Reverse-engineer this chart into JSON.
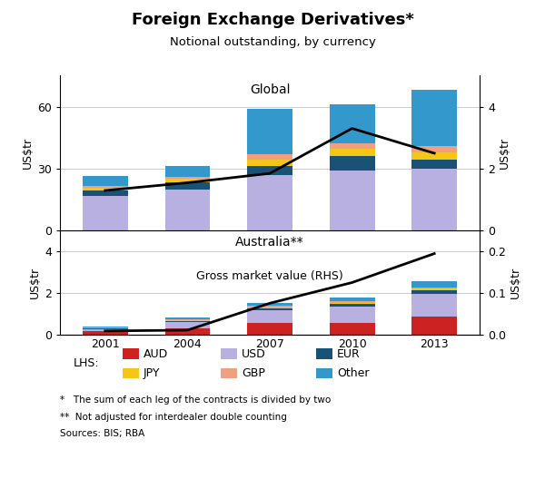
{
  "title": "Foreign Exchange Derivatives*",
  "subtitle": "Notional outstanding, by currency",
  "years": [
    2001,
    2004,
    2007,
    2010,
    2013
  ],
  "global_label": "Global",
  "australia_label": "Australia**",
  "gmv_label": "Gross market value (RHS)",
  "global_bars": {
    "USD": [
      17.0,
      20.0,
      27.0,
      29.0,
      30.0
    ],
    "EUR": [
      2.5,
      3.5,
      4.5,
      7.0,
      4.5
    ],
    "JPY": [
      1.2,
      1.5,
      3.0,
      3.5,
      3.5
    ],
    "GBP": [
      0.8,
      1.0,
      2.5,
      3.0,
      3.0
    ],
    "Other": [
      5.0,
      5.5,
      22.0,
      18.5,
      27.0
    ]
  },
  "global_line": [
    1.3,
    1.55,
    1.85,
    3.3,
    2.5
  ],
  "global_ylim": [
    0,
    75
  ],
  "global_yticks": [
    0,
    30,
    60
  ],
  "global_rhs_ylim": [
    0,
    5.0
  ],
  "global_rhs_yticks": [
    0,
    2,
    4
  ],
  "aus_bars": {
    "AUD": [
      0.15,
      0.3,
      0.55,
      0.55,
      0.85
    ],
    "USD": [
      0.1,
      0.3,
      0.6,
      0.8,
      1.1
    ],
    "EUR": [
      0.03,
      0.05,
      0.1,
      0.12,
      0.18
    ],
    "JPY": [
      0.02,
      0.04,
      0.06,
      0.06,
      0.07
    ],
    "GBP": [
      0.02,
      0.04,
      0.06,
      0.06,
      0.07
    ],
    "Other": [
      0.05,
      0.07,
      0.15,
      0.2,
      0.3
    ]
  },
  "aus_line": [
    0.008,
    0.01,
    0.075,
    0.125,
    0.195
  ],
  "aus_ylim": [
    0,
    5.0
  ],
  "aus_yticks": [
    0,
    2,
    4
  ],
  "aus_rhs_ylim": [
    0,
    0.25
  ],
  "aus_rhs_yticks": [
    0.0,
    0.1,
    0.2
  ],
  "colors": {
    "AUD": "#cc2222",
    "USD": "#b8b0e0",
    "EUR": "#1a5276",
    "JPY": "#f5c518",
    "GBP": "#f0a080",
    "Other": "#3399cc"
  },
  "legend_items": [
    "AUD",
    "USD",
    "EUR",
    "JPY",
    "GBP",
    "Other"
  ],
  "footnote1": "*   The sum of each leg of the contracts is divided by two",
  "footnote2": "**  Not adjusted for interdealer double counting",
  "footnote3": "Sources: BIS; RBA"
}
